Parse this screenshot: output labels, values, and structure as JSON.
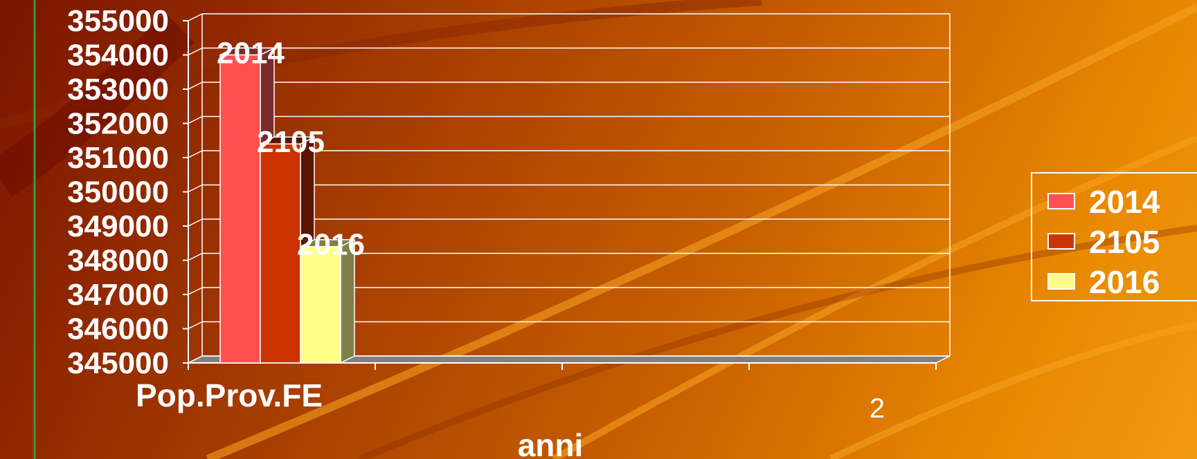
{
  "page_number": "2",
  "colors": {
    "grid": "#ffffff",
    "floor": "#808080"
  },
  "chart_data": {
    "type": "bar",
    "categories": [
      "Pop.Prov.FE"
    ],
    "series": [
      {
        "name": "2014",
        "values": [
          354000
        ],
        "label": "2014",
        "color": "#ff5050",
        "side_color": "#7a2a2a"
      },
      {
        "name": "2105",
        "values": [
          351400
        ],
        "label": "2105",
        "color": "#cc3300",
        "side_color": "#5a1500"
      },
      {
        "name": "2016",
        "values": [
          348400
        ],
        "label": "2016",
        "color": "#ffff88",
        "side_color": "#7f7f4a"
      }
    ],
    "title": "",
    "xlabel": "anni",
    "ylabel": "",
    "ylim": [
      345000,
      355000
    ],
    "yticks": [
      "345000",
      "346000",
      "347000",
      "348000",
      "349000",
      "350000",
      "351000",
      "352000",
      "353000",
      "354000",
      "355000"
    ],
    "grid": true,
    "legend": "right",
    "legend_entries": [
      "2014",
      "2105",
      "2016"
    ]
  }
}
